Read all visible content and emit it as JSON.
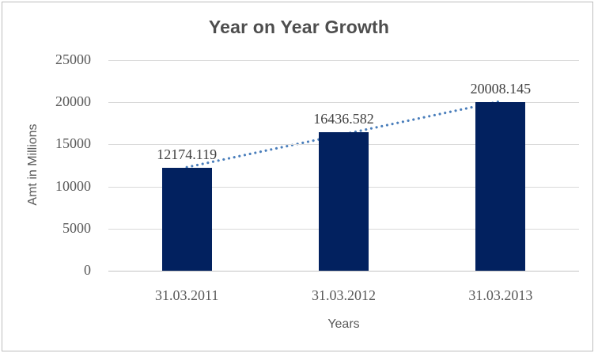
{
  "chart": {
    "colors": {
      "bar": "#02215F",
      "trendline": "#4A7EBB",
      "gridline": "#D9D9D9",
      "axis_line": "#C3C3C3",
      "title_text": "#4E4E4E",
      "tick_text": "#595959",
      "data_label_text": "#404040",
      "frame_border": "#BDBDBD",
      "background": "#FFFFFF"
    }
  },
  "chart_data": {
    "type": "bar",
    "title": "Year on Year Growth",
    "xlabel": "Years",
    "ylabel": "Amt in Millions",
    "categories": [
      "31.03.2011",
      "31.03.2012",
      "31.03.2013"
    ],
    "values": [
      12174.119,
      16436.582,
      20008.145
    ],
    "data_labels": [
      "12174.119",
      "16436.582",
      "20008.145"
    ],
    "ylim": [
      0,
      25000
    ],
    "ytick_labels": [
      "25000",
      "20000",
      "15000",
      "10000",
      "5000",
      "0"
    ],
    "grid": true,
    "legend": false,
    "trendline": {
      "type": "linear",
      "style": "dotted"
    }
  }
}
